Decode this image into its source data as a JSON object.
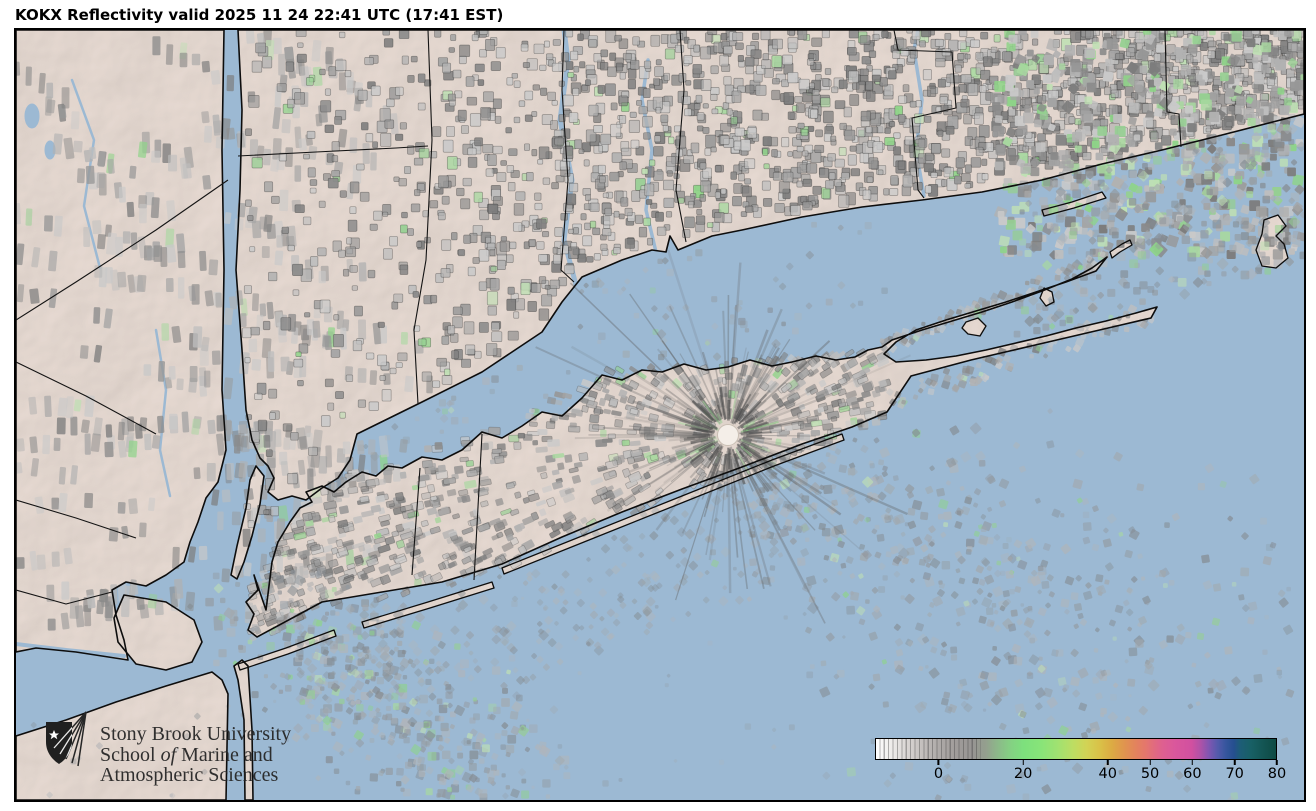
{
  "title": "KOKX Reflectivity valid 2025 11 24 22:41 UTC (17:41 EST)",
  "logo": {
    "line1": "Stony Brook University",
    "line2_a": "School ",
    "line2_b": "of",
    "line2_c": " Marine and",
    "line3": "Atmospheric Sciences"
  },
  "colorbar": {
    "min": -15,
    "max": 80,
    "tick_values": [
      0,
      20,
      40,
      50,
      60,
      70,
      80
    ],
    "stops": [
      {
        "v": -15,
        "c": "#ffffff"
      },
      {
        "v": -11,
        "c": "#eceae8"
      },
      {
        "v": -7,
        "c": "#d6d2d0"
      },
      {
        "v": -3,
        "c": "#bdb9b7"
      },
      {
        "v": 0,
        "c": "#aeaaa8"
      },
      {
        "v": 4,
        "c": "#a09c9a"
      },
      {
        "v": 8,
        "c": "#979593"
      },
      {
        "v": 11,
        "c": "#949f8e"
      },
      {
        "v": 14,
        "c": "#8cb989"
      },
      {
        "v": 17,
        "c": "#84d183"
      },
      {
        "v": 20,
        "c": "#7de07d"
      },
      {
        "v": 24,
        "c": "#87e479"
      },
      {
        "v": 28,
        "c": "#9fe271"
      },
      {
        "v": 32,
        "c": "#bedd62"
      },
      {
        "v": 35,
        "c": "#d2d355"
      },
      {
        "v": 38,
        "c": "#d9c248"
      },
      {
        "v": 41,
        "c": "#dcab43"
      },
      {
        "v": 44,
        "c": "#e0944f"
      },
      {
        "v": 47,
        "c": "#e3815f"
      },
      {
        "v": 49,
        "c": "#e4776c"
      },
      {
        "v": 51,
        "c": "#e16b7f"
      },
      {
        "v": 53,
        "c": "#de6090"
      },
      {
        "v": 56,
        "c": "#da579c"
      },
      {
        "v": 60,
        "c": "#d150a0"
      },
      {
        "v": 62,
        "c": "#b052a7"
      },
      {
        "v": 64,
        "c": "#8156b1"
      },
      {
        "v": 66,
        "c": "#565aac"
      },
      {
        "v": 68,
        "c": "#37569e"
      },
      {
        "v": 70,
        "c": "#254f8f"
      },
      {
        "v": 71.5,
        "c": "#1d5d77"
      },
      {
        "v": 74,
        "c": "#186066"
      },
      {
        "v": 77,
        "c": "#135553"
      },
      {
        "v": 80,
        "c": "#0e4a43"
      }
    ]
  },
  "map": {
    "water_color": "#9cb9d3",
    "land_color": "#ecdfd7",
    "coast_color": "#0d0d0d",
    "boundary_color": "#141414",
    "radar_center_fill": "#f4eee8",
    "clutter_grays": [
      "#7d7d7d",
      "#8a8a8a",
      "#979797",
      "#a4a4a4",
      "#b1b1b1",
      "#bebebe",
      "#c9c9c9"
    ],
    "clutter_greens": [
      "#96cf92",
      "#a8d8a0",
      "#bfe0b4",
      "#8ed488"
    ],
    "ocean_grays": [
      "#848b91",
      "#939aa0",
      "#a2a8ad",
      "#b0b5ba"
    ]
  }
}
